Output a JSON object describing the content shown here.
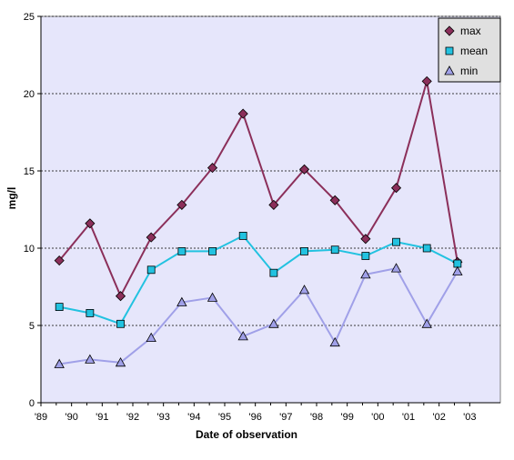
{
  "chart_data": {
    "type": "line",
    "title": "",
    "xlabel": "Date of observation",
    "ylabel": "mg/l",
    "x_ticks": [
      "'89",
      "'90",
      "'91",
      "'92",
      "'93",
      "'94",
      "'95",
      "'96",
      "'97",
      "'98",
      "'99",
      "'00",
      "'01",
      "'02",
      "'03"
    ],
    "ylim": [
      0,
      25
    ],
    "y_ticks": [
      0,
      5,
      10,
      15,
      20,
      25
    ],
    "grid": "horizontal dashed",
    "legend_position": "top-right",
    "x": [
      1989.6,
      1990.6,
      1991.6,
      1992.6,
      1993.6,
      1994.6,
      1995.6,
      1996.6,
      1997.6,
      1998.6,
      1999.6,
      2000.6,
      2001.6,
      2002.6
    ],
    "series": [
      {
        "name": "max",
        "color": "#8b2f5a",
        "marker": "diamond",
        "values": [
          9.2,
          11.6,
          6.9,
          10.7,
          12.8,
          15.2,
          18.7,
          12.8,
          15.1,
          13.1,
          10.6,
          13.9,
          20.8,
          9.1
        ]
      },
      {
        "name": "mean",
        "color": "#22c2e0",
        "marker": "square",
        "values": [
          6.2,
          5.8,
          5.1,
          8.6,
          9.8,
          9.8,
          10.8,
          8.4,
          9.8,
          9.9,
          9.5,
          10.4,
          10.0,
          9.0
        ]
      },
      {
        "name": "min",
        "color": "#a0a0e8",
        "marker": "triangle",
        "values": [
          2.5,
          2.8,
          2.6,
          4.2,
          6.5,
          6.8,
          4.3,
          5.1,
          7.3,
          3.9,
          8.3,
          8.7,
          5.1,
          8.5
        ]
      }
    ]
  }
}
